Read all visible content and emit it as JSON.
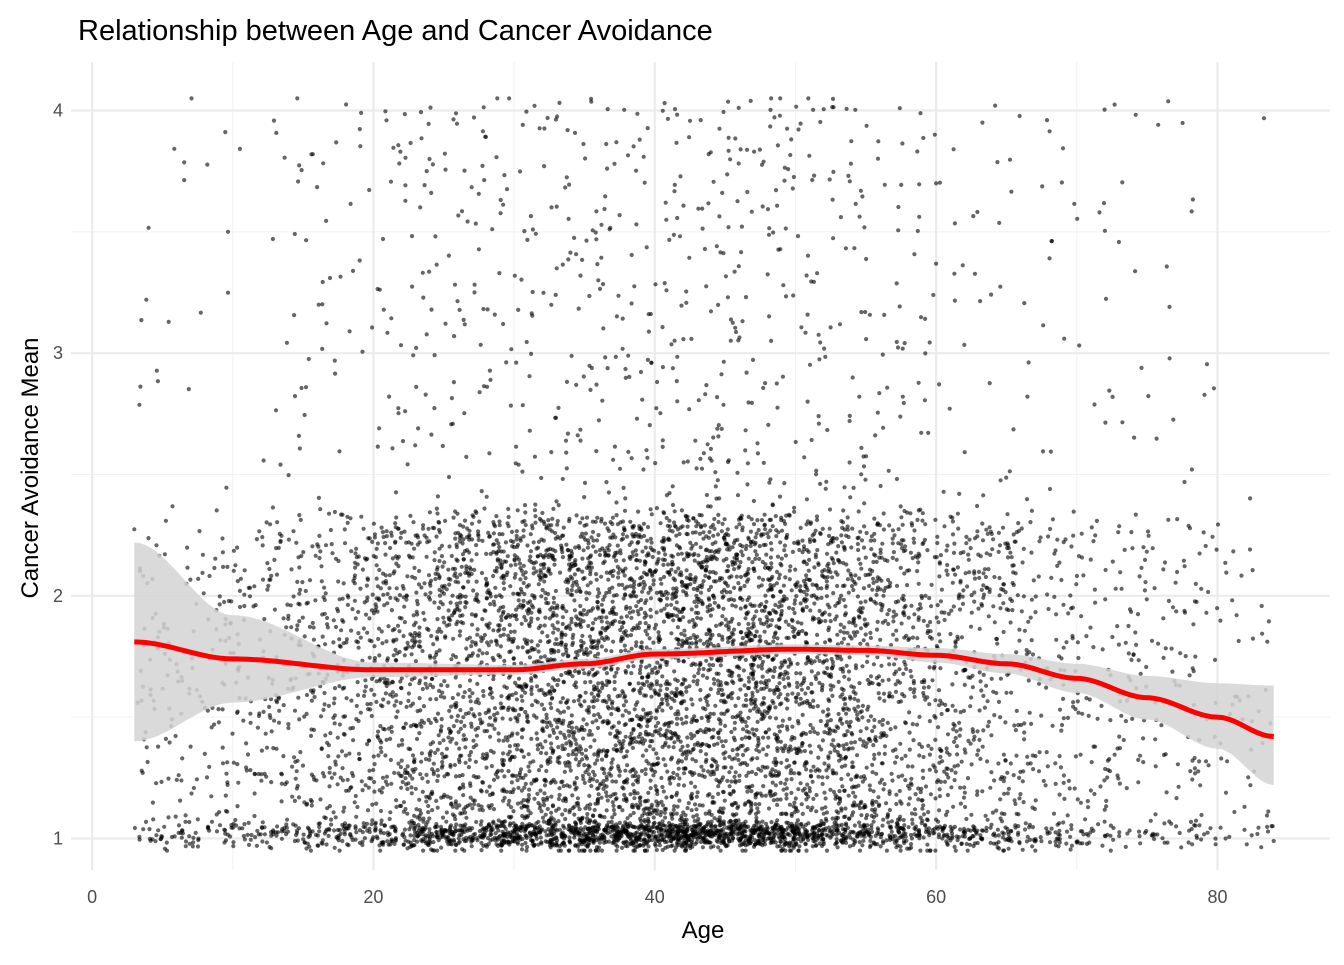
{
  "chart_data": {
    "type": "scatter",
    "title": "Relationship between Age and Cancer Avoidance",
    "xlabel": "Age",
    "ylabel": "Cancer Avoidance Mean",
    "xlim": [
      -1.5,
      88
    ],
    "ylim": [
      0.87,
      4.2
    ],
    "x_ticks": [
      0,
      20,
      40,
      60,
      80
    ],
    "y_ticks": [
      1,
      2,
      3,
      4
    ],
    "x_tick_labels": [
      "0",
      "20",
      "40",
      "60",
      "80"
    ],
    "y_tick_labels": [
      "1",
      "2",
      "3",
      "4"
    ],
    "grid": true,
    "legend": "none",
    "points": {
      "n_approx": 9000,
      "x_range": [
        3,
        84
      ],
      "y_range": [
        0.95,
        4.05
      ],
      "color": "#000000",
      "opacity": 0.6
    },
    "smooth": {
      "method": "loess",
      "color": "#ff0000",
      "band_color": "#d3d3d3",
      "fit": [
        {
          "x": 3,
          "y": 1.81,
          "lo": 1.4,
          "hi": 2.22
        },
        {
          "x": 10,
          "y": 1.74,
          "lo": 1.56,
          "hi": 1.92
        },
        {
          "x": 20,
          "y": 1.695,
          "lo": 1.665,
          "hi": 1.725
        },
        {
          "x": 30,
          "y": 1.695,
          "lo": 1.675,
          "hi": 1.715
        },
        {
          "x": 35,
          "y": 1.72,
          "lo": 1.7,
          "hi": 1.74
        },
        {
          "x": 40,
          "y": 1.76,
          "lo": 1.74,
          "hi": 1.78
        },
        {
          "x": 50,
          "y": 1.78,
          "lo": 1.76,
          "hi": 1.8
        },
        {
          "x": 55,
          "y": 1.775,
          "lo": 1.755,
          "hi": 1.795
        },
        {
          "x": 60,
          "y": 1.755,
          "lo": 1.725,
          "hi": 1.785
        },
        {
          "x": 65,
          "y": 1.72,
          "lo": 1.68,
          "hi": 1.76
        },
        {
          "x": 70,
          "y": 1.66,
          "lo": 1.6,
          "hi": 1.72
        },
        {
          "x": 75,
          "y": 1.58,
          "lo": 1.49,
          "hi": 1.67
        },
        {
          "x": 80,
          "y": 1.5,
          "lo": 1.37,
          "hi": 1.64
        },
        {
          "x": 84,
          "y": 1.42,
          "lo": 1.22,
          "hi": 1.63
        }
      ]
    }
  }
}
